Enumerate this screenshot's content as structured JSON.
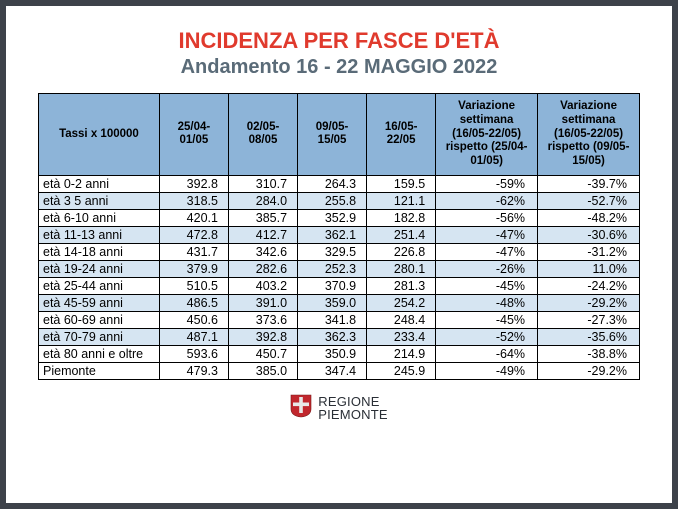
{
  "title": {
    "text": "INCIDENZA PER FASCE D'ETÀ",
    "color": "#e03a2d"
  },
  "subtitle": {
    "text": "Andamento 16 - 22 MAGGIO 2022",
    "color": "#5a6b78"
  },
  "table": {
    "header_bg": "#8db4d8",
    "row_alt_bg": "#d6e5f2",
    "columns": [
      {
        "label": "Tassi x 100000"
      },
      {
        "label": "25/04-01/05"
      },
      {
        "label": "02/05-08/05"
      },
      {
        "label": "09/05-15/05"
      },
      {
        "label": "16/05-22/05"
      },
      {
        "label": "Variazione settimana (16/05-22/05) rispetto (25/04-01/05)"
      },
      {
        "label": "Variazione settimana (16/05-22/05) rispetto (09/05-15/05)"
      }
    ],
    "rows": [
      {
        "label": "età 0-2 anni",
        "v": [
          "392.8",
          "310.7",
          "264.3",
          "159.5",
          "-59%",
          "-39.7%"
        ]
      },
      {
        "label": "età 3 5 anni",
        "v": [
          "318.5",
          "284.0",
          "255.8",
          "121.1",
          "-62%",
          "-52.7%"
        ]
      },
      {
        "label": "età 6-10 anni",
        "v": [
          "420.1",
          "385.7",
          "352.9",
          "182.8",
          "-56%",
          "-48.2%"
        ]
      },
      {
        "label": "età 11-13 anni",
        "v": [
          "472.8",
          "412.7",
          "362.1",
          "251.4",
          "-47%",
          "-30.6%"
        ]
      },
      {
        "label": "età 14-18 anni",
        "v": [
          "431.7",
          "342.6",
          "329.5",
          "226.8",
          "-47%",
          "-31.2%"
        ]
      },
      {
        "label": "età 19-24 anni",
        "v": [
          "379.9",
          "282.6",
          "252.3",
          "280.1",
          "-26%",
          "11.0%"
        ]
      },
      {
        "label": "età 25-44 anni",
        "v": [
          "510.5",
          "403.2",
          "370.9",
          "281.3",
          "-45%",
          "-24.2%"
        ]
      },
      {
        "label": "età 45-59 anni",
        "v": [
          "486.5",
          "391.0",
          "359.0",
          "254.2",
          "-48%",
          "-29.2%"
        ]
      },
      {
        "label": "età 60-69 anni",
        "v": [
          "450.6",
          "373.6",
          "341.8",
          "248.4",
          "-45%",
          "-27.3%"
        ]
      },
      {
        "label": "età 70-79 anni",
        "v": [
          "487.1",
          "392.8",
          "362.3",
          "233.4",
          "-52%",
          "-35.6%"
        ]
      },
      {
        "label": "età 80 anni e oltre",
        "v": [
          "593.6",
          "450.7",
          "350.9",
          "214.9",
          "-64%",
          "-38.8%"
        ]
      },
      {
        "label": "Piemonte",
        "v": [
          "479.3",
          "385.0",
          "347.4",
          "245.9",
          "-49%",
          "-29.2%"
        ]
      }
    ]
  },
  "footer": {
    "line1": "REGIONE",
    "line2": "PIEMONTE",
    "shield_bg": "#c1272d",
    "shield_cross": "#e8e8e8"
  }
}
